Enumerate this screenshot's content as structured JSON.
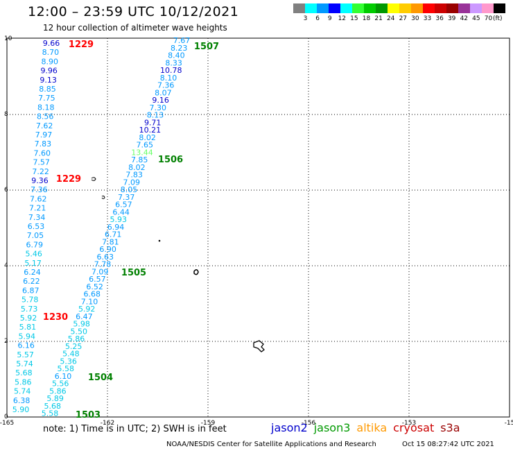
{
  "header": {
    "title": "12:00 – 23:59 UTC 10/12/2021",
    "subtitle": "12 hour collection of altimeter wave heights"
  },
  "legend": {
    "colors": [
      "#808080",
      "#00ffff",
      "#0099ff",
      "#0000ff",
      "#00ffff",
      "#33ff33",
      "#00cc00",
      "#009900",
      "#ffff00",
      "#ffcc00",
      "#ff9900",
      "#ff0000",
      "#cc0000",
      "#990000",
      "#993399",
      "#cc99ff",
      "#ff99cc",
      "#000000"
    ],
    "labels": [
      "3",
      "6",
      "9",
      "12",
      "15",
      "18",
      "21",
      "24",
      "27",
      "30",
      "33",
      "36",
      "39",
      "42",
      "45",
      "70"
    ],
    "unit": "(ft)"
  },
  "map": {
    "x_ticks": [
      "-165",
      "-162",
      "-159",
      "-156",
      "-153",
      "-15"
    ],
    "y_ticks": [
      "0",
      "2",
      "4",
      "6",
      "8",
      "10"
    ],
    "passes": [
      {
        "label": "1507",
        "color": "#008000"
      },
      {
        "label": "1506",
        "color": "#008000"
      },
      {
        "label": "1505",
        "color": "#008000"
      },
      {
        "label": "1504",
        "color": "#008000"
      },
      {
        "label": "1503",
        "color": "#008000"
      },
      {
        "label": "1229",
        "color": "#ff0000"
      },
      {
        "label": "1229",
        "color": "#ff0000"
      },
      {
        "label": "1230",
        "color": "#ff0000"
      }
    ],
    "track_a": [
      {
        "v": "7.67",
        "c": "#0099ff"
      },
      {
        "v": "8.23",
        "c": "#0099ff"
      },
      {
        "v": "8.40",
        "c": "#0099ff"
      },
      {
        "v": "8.33",
        "c": "#0099ff"
      },
      {
        "v": "10.78",
        "c": "#0000cc"
      },
      {
        "v": "8.10",
        "c": "#0099ff"
      },
      {
        "v": "7.36",
        "c": "#0099ff"
      },
      {
        "v": "8.07",
        "c": "#0099ff"
      },
      {
        "v": "9.16",
        "c": "#0000cc"
      },
      {
        "v": "7.30",
        "c": "#0099ff"
      },
      {
        "v": "8.13",
        "c": "#0099ff"
      },
      {
        "v": "9.71",
        "c": "#0000cc"
      },
      {
        "v": "10.21",
        "c": "#0000cc"
      },
      {
        "v": "8.02",
        "c": "#0099ff"
      },
      {
        "v": "7.65",
        "c": "#0099ff"
      },
      {
        "v": "13.44",
        "c": "#66ff66"
      },
      {
        "v": "7.85",
        "c": "#0099ff"
      },
      {
        "v": "8.02",
        "c": "#0099ff"
      },
      {
        "v": "7.83",
        "c": "#0099ff"
      },
      {
        "v": "7.09",
        "c": "#0099ff"
      },
      {
        "v": "8.05",
        "c": "#0099ff"
      },
      {
        "v": "7.37",
        "c": "#0099ff"
      },
      {
        "v": "6.57",
        "c": "#0099ff"
      },
      {
        "v": "6.44",
        "c": "#0099ff"
      },
      {
        "v": "5.93",
        "c": "#00c8e6"
      },
      {
        "v": "6.94",
        "c": "#0099ff"
      },
      {
        "v": "6.71",
        "c": "#0099ff"
      },
      {
        "v": "7.81",
        "c": "#0099ff"
      },
      {
        "v": "6.90",
        "c": "#0099ff"
      },
      {
        "v": "6.63",
        "c": "#0099ff"
      },
      {
        "v": "7.78",
        "c": "#0099ff"
      },
      {
        "v": "7.09",
        "c": "#0099ff"
      },
      {
        "v": "6.57",
        "c": "#0099ff"
      },
      {
        "v": "6.52",
        "c": "#0099ff"
      },
      {
        "v": "6.68",
        "c": "#0099ff"
      },
      {
        "v": "7.10",
        "c": "#0099ff"
      },
      {
        "v": "5.92",
        "c": "#00c8e6"
      },
      {
        "v": "6.47",
        "c": "#0099ff"
      },
      {
        "v": "5.98",
        "c": "#00c8e6"
      },
      {
        "v": "5.50",
        "c": "#00c8e6"
      },
      {
        "v": "5.86",
        "c": "#00c8e6"
      },
      {
        "v": "5.25",
        "c": "#00c8e6"
      },
      {
        "v": "5.48",
        "c": "#00c8e6"
      },
      {
        "v": "5.36",
        "c": "#00c8e6"
      },
      {
        "v": "5.58",
        "c": "#00c8e6"
      },
      {
        "v": "6.10",
        "c": "#0099ff"
      },
      {
        "v": "5.56",
        "c": "#00c8e6"
      },
      {
        "v": "5.86",
        "c": "#00c8e6"
      },
      {
        "v": "5.89",
        "c": "#00c8e6"
      },
      {
        "v": "5.68",
        "c": "#00c8e6"
      },
      {
        "v": "5.58",
        "c": "#00c8e6"
      }
    ],
    "track_b": [
      {
        "v": "9.66",
        "c": "#0000cc"
      },
      {
        "v": "8.70",
        "c": "#0099ff"
      },
      {
        "v": "8.90",
        "c": "#0099ff"
      },
      {
        "v": "9.96",
        "c": "#0000cc"
      },
      {
        "v": "9.13",
        "c": "#0000cc"
      },
      {
        "v": "8.85",
        "c": "#0099ff"
      },
      {
        "v": "7.75",
        "c": "#0099ff"
      },
      {
        "v": "8.18",
        "c": "#0099ff"
      },
      {
        "v": "8.56",
        "c": "#0099ff"
      },
      {
        "v": "7.62",
        "c": "#0099ff"
      },
      {
        "v": "7.97",
        "c": "#0099ff"
      },
      {
        "v": "7.83",
        "c": "#0099ff"
      },
      {
        "v": "7.60",
        "c": "#0099ff"
      },
      {
        "v": "7.57",
        "c": "#0099ff"
      },
      {
        "v": "7.22",
        "c": "#0099ff"
      },
      {
        "v": "9.36",
        "c": "#0000cc"
      },
      {
        "v": "7.36",
        "c": "#0099ff"
      },
      {
        "v": "7.62",
        "c": "#0099ff"
      },
      {
        "v": "7.21",
        "c": "#0099ff"
      },
      {
        "v": "7.34",
        "c": "#0099ff"
      },
      {
        "v": "6.53",
        "c": "#0099ff"
      },
      {
        "v": "7.05",
        "c": "#0099ff"
      },
      {
        "v": "6.79",
        "c": "#0099ff"
      },
      {
        "v": "5.46",
        "c": "#00c8e6"
      },
      {
        "v": "5.17",
        "c": "#00c8e6"
      },
      {
        "v": "6.24",
        "c": "#0099ff"
      },
      {
        "v": "6.22",
        "c": "#0099ff"
      },
      {
        "v": "6.87",
        "c": "#0099ff"
      },
      {
        "v": "5.78",
        "c": "#00c8e6"
      },
      {
        "v": "5.73",
        "c": "#00c8e6"
      },
      {
        "v": "5.92",
        "c": "#00c8e6"
      },
      {
        "v": "5.81",
        "c": "#00c8e6"
      },
      {
        "v": "5.94",
        "c": "#00c8e6"
      },
      {
        "v": "6.16",
        "c": "#0099ff"
      },
      {
        "v": "5.57",
        "c": "#00c8e6"
      },
      {
        "v": "5.74",
        "c": "#00c8e6"
      },
      {
        "v": "5.68",
        "c": "#00c8e6"
      },
      {
        "v": "5.86",
        "c": "#00c8e6"
      },
      {
        "v": "5.74",
        "c": "#00c8e6"
      },
      {
        "v": "6.38",
        "c": "#0099ff"
      },
      {
        "v": "5.90",
        "c": "#00c8e6"
      }
    ]
  },
  "note": "note:  1) Time is in UTC;  2) SWH is in feet",
  "satellites": [
    {
      "name": "jason2",
      "color": "#0000cc"
    },
    {
      "name": "jason3",
      "color": "#009900"
    },
    {
      "name": "altika",
      "color": "#ff9900"
    },
    {
      "name": "cryosat",
      "color": "#cc0000"
    },
    {
      "name": "s3a",
      "color": "#990000"
    }
  ],
  "footer": {
    "credit": "NOAA/NESDIS Center for Satellite Applications and Research",
    "timestamp": "Oct 15 08:27:42 UTC 2021"
  }
}
